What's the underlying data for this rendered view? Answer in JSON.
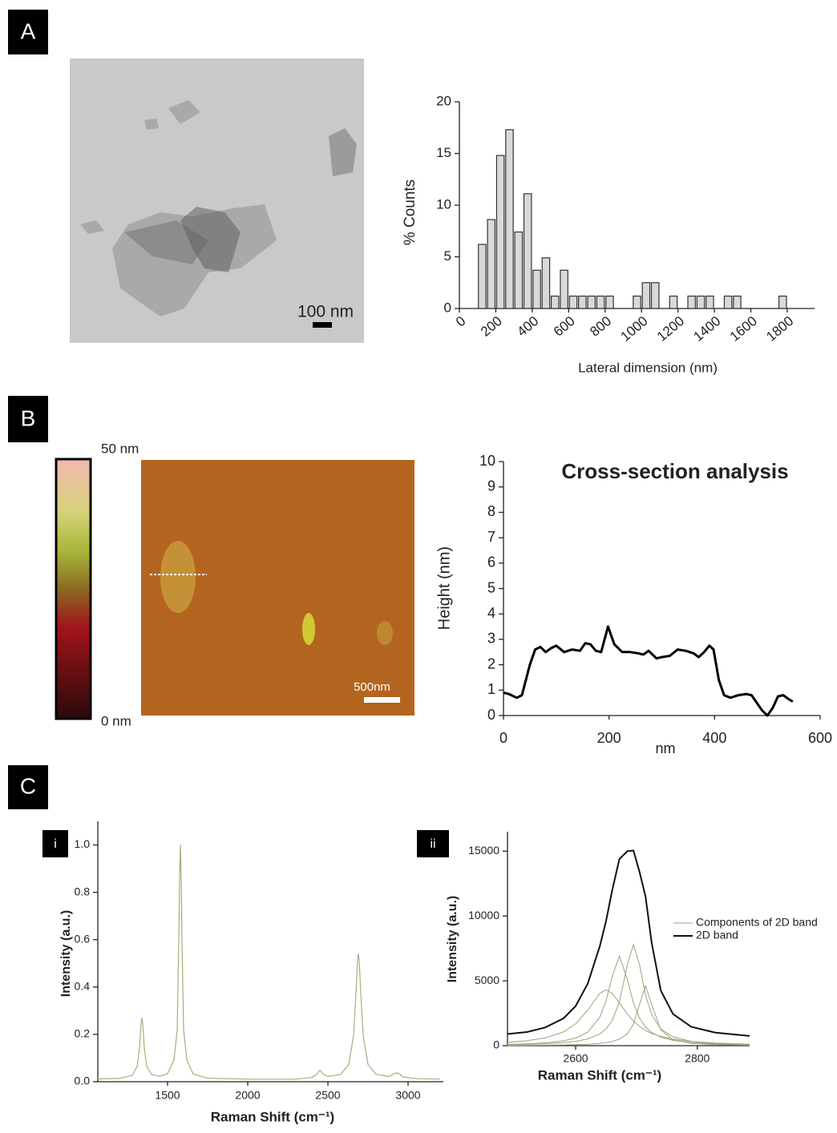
{
  "panel_labels": [
    "A",
    "B",
    "C"
  ],
  "sub_labels": [
    "i",
    "ii"
  ],
  "tem_image": {
    "scale_bar": "100 nm"
  },
  "afm_image": {
    "scale_bar": "500nm",
    "colorbar_max": "50 nm",
    "colorbar_min": "0 nm"
  },
  "chart_data": [
    {
      "type": "histogram",
      "xlabel": "Lateral  dimension (nm)",
      "ylabel": "% Counts",
      "bins": [
        100,
        150,
        200,
        250,
        300,
        350,
        400,
        450,
        500,
        550,
        600,
        650,
        700,
        750,
        800,
        850,
        900,
        950,
        1000,
        1050,
        1100,
        1150,
        1200,
        1250,
        1300,
        1350,
        1400,
        1450,
        1500,
        1550,
        1600,
        1650,
        1700,
        1750,
        1800
      ],
      "values": [
        6.2,
        8.6,
        14.8,
        17.3,
        7.4,
        11.1,
        3.7,
        4.9,
        1.2,
        3.7,
        1.2,
        1.2,
        1.2,
        1.2,
        1.2,
        0,
        0,
        1.2,
        2.5,
        2.5,
        0,
        1.2,
        0,
        1.2,
        1.2,
        1.2,
        0,
        1.2,
        1.2,
        0,
        0,
        0,
        0,
        1.2
      ],
      "color": "#d9d9d9",
      "xlim": [
        0,
        1950
      ],
      "xticks": [
        0,
        200,
        400,
        600,
        800,
        1000,
        1200,
        1400,
        1600,
        1800
      ],
      "ylim": [
        0,
        20
      ],
      "yticks": [
        0,
        5,
        10,
        15,
        20
      ]
    },
    {
      "type": "line",
      "title": "Cross-section analysis",
      "xlabel": "nm",
      "ylabel": "Height (nm)",
      "x": [
        0,
        10,
        25,
        35,
        50,
        60,
        70,
        80,
        90,
        100,
        115,
        130,
        145,
        155,
        165,
        175,
        185,
        198,
        210,
        225,
        240,
        255,
        265,
        275,
        290,
        300,
        315,
        330,
        345,
        360,
        370,
        380,
        390,
        398,
        408,
        418,
        430,
        445,
        460,
        470,
        480,
        490,
        500,
        510,
        520,
        530,
        540,
        548
      ],
      "values": [
        0.9,
        0.85,
        0.7,
        0.8,
        2.0,
        2.6,
        2.7,
        2.5,
        2.65,
        2.75,
        2.5,
        2.6,
        2.55,
        2.85,
        2.8,
        2.55,
        2.5,
        3.5,
        2.8,
        2.5,
        2.5,
        2.45,
        2.4,
        2.55,
        2.25,
        2.3,
        2.35,
        2.6,
        2.55,
        2.45,
        2.3,
        2.5,
        2.75,
        2.6,
        1.4,
        0.8,
        0.7,
        0.8,
        0.85,
        0.8,
        0.5,
        0.2,
        0.0,
        0.3,
        0.75,
        0.8,
        0.65,
        0.55
      ],
      "color": "#000000",
      "xlim": [
        0,
        600
      ],
      "xticks": [
        0,
        200,
        400,
        600
      ],
      "ylim": [
        0,
        10
      ],
      "yticks": [
        0,
        1,
        2,
        3,
        4,
        5,
        6,
        7,
        8,
        9,
        10
      ]
    },
    {
      "type": "line",
      "xlabel": "Raman Shift (cm⁻¹)",
      "ylabel": "Intensity (a.u.)",
      "x": [
        1065,
        1200,
        1280,
        1310,
        1325,
        1335,
        1340,
        1345,
        1355,
        1370,
        1400,
        1450,
        1500,
        1540,
        1560,
        1570,
        1575,
        1580,
        1585,
        1590,
        1600,
        1620,
        1660,
        1750,
        2000,
        2300,
        2400,
        2430,
        2450,
        2470,
        2500,
        2580,
        2630,
        2660,
        2675,
        2685,
        2690,
        2695,
        2705,
        2720,
        2750,
        2800,
        2880,
        2920,
        2940,
        2970,
        3050,
        3200
      ],
      "values": [
        0.012,
        0.014,
        0.027,
        0.064,
        0.142,
        0.246,
        0.27,
        0.247,
        0.143,
        0.065,
        0.03,
        0.023,
        0.034,
        0.093,
        0.218,
        0.595,
        0.854,
        1.0,
        0.854,
        0.595,
        0.22,
        0.093,
        0.032,
        0.015,
        0.011,
        0.011,
        0.018,
        0.031,
        0.049,
        0.033,
        0.022,
        0.031,
        0.073,
        0.195,
        0.372,
        0.514,
        0.54,
        0.514,
        0.372,
        0.195,
        0.073,
        0.031,
        0.022,
        0.036,
        0.036,
        0.02,
        0.013,
        0.011
      ],
      "color": "#a8ad7a",
      "xlim": [
        1065,
        3220
      ],
      "xticks": [
        1500,
        2000,
        2500,
        3000
      ],
      "ylim": [
        0,
        1.1
      ],
      "yticks": [
        {
          "value": 0,
          "label": "0.0"
        },
        0.2,
        0.4,
        0.6,
        0.8,
        {
          "value": 1,
          "label": "1.0"
        }
      ]
    },
    {
      "type": "line",
      "xlabel": "Raman Shift (cm⁻¹)",
      "ylabel": "Intensity (a.u.)",
      "x": [
        2488,
        2520,
        2550,
        2580,
        2600,
        2620,
        2640,
        2650,
        2660,
        2672,
        2685,
        2695,
        2705,
        2715,
        2725,
        2740,
        2760,
        2790,
        2830,
        2886
      ],
      "series": [
        {
          "name": "Components of 2D band",
          "color": "#9aa57a",
          "lines": [
            [
              247,
              391,
              593,
              1059,
              1680,
              2752,
              4047,
              4300,
              4047,
              3301,
              2435,
              1895,
              1488,
              1181,
              951,
              709,
              502,
              325,
              202,
              120
            ],
            [
              97,
              139,
              217,
              373,
              590,
              1047,
              2214,
              3450,
              5320,
              6900,
              5115,
              3300,
              2123,
              1432,
              1015,
              654,
              406,
              232,
              131,
              72
            ],
            [
              72,
              99,
              146,
              229,
              331,
              518,
              911,
              1287,
              1921,
              3359,
              6240,
              7800,
              6240,
              3900,
              2400,
              1287,
              675,
              331,
              167,
              85
            ],
            [
              20,
              27,
              38,
              56,
              77,
              112,
              177,
              232,
              319,
              499,
              920,
              1656,
              3185,
              4600,
              3185,
              1217,
              460,
              177,
              77,
              35
            ]
          ]
        },
        {
          "name": "2D band",
          "color": "#111111",
          "values": [
            900,
            1050,
            1400,
            2100,
            3050,
            4800,
            7700,
            9600,
            11950,
            14400,
            15000,
            15050,
            13400,
            11500,
            7950,
            4250,
            2450,
            1450,
            1000,
            750
          ]
        }
      ],
      "xlim": [
        2488,
        2886
      ],
      "xticks": [
        2600,
        2800
      ],
      "ylim": [
        0,
        16500
      ],
      "yticks": [
        0,
        5000,
        10000,
        15000
      ]
    }
  ]
}
